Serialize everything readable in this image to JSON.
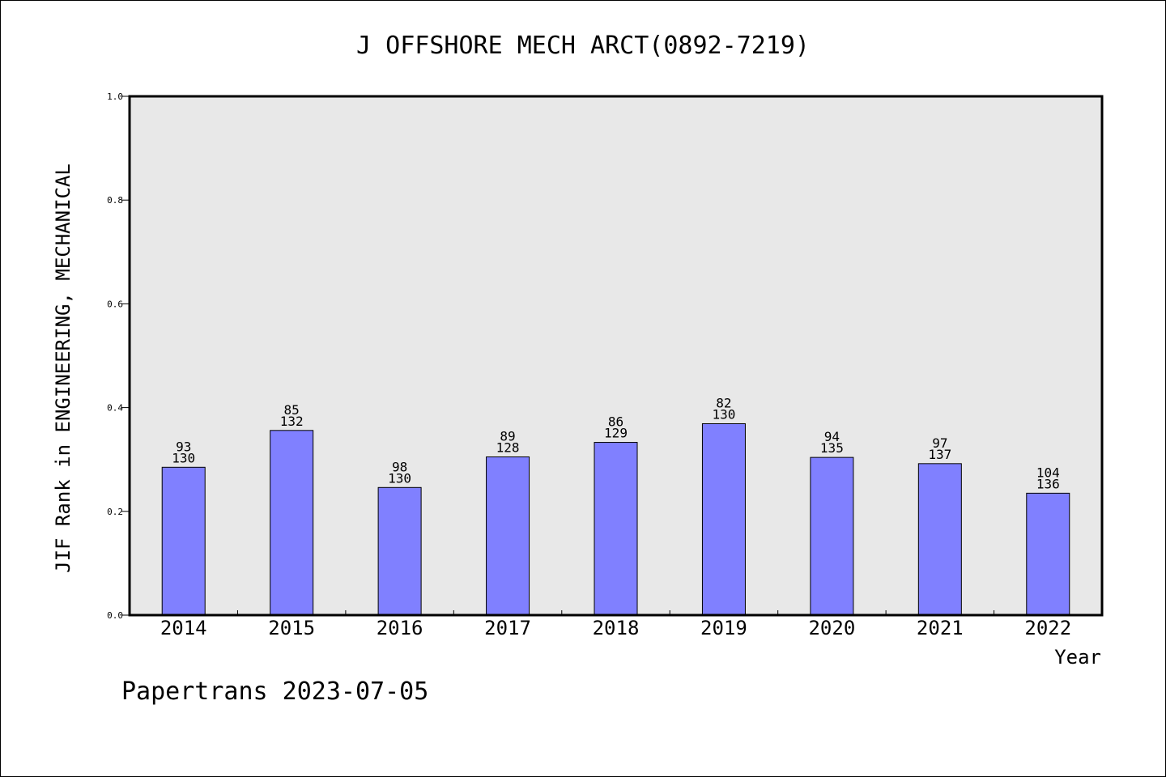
{
  "chart_data": {
    "type": "bar",
    "title": "J OFFSHORE MECH ARCT(0892-7219)",
    "xlabel": "Year",
    "ylabel": "JIF Rank in ENGINEERING, MECHANICAL",
    "ylim": [
      0.0,
      1.0
    ],
    "yticks": [
      "0.0",
      "0.2",
      "0.4",
      "0.6",
      "0.8",
      "1.0"
    ],
    "categories": [
      "2014",
      "2015",
      "2016",
      "2017",
      "2018",
      "2019",
      "2020",
      "2021",
      "2022"
    ],
    "values": [
      0.285,
      0.356,
      0.246,
      0.305,
      0.333,
      0.369,
      0.304,
      0.292,
      0.235
    ],
    "rank": [
      "93",
      "85",
      "98",
      "89",
      "86",
      "82",
      "94",
      "97",
      "104"
    ],
    "total": [
      "130",
      "132",
      "130",
      "128",
      "129",
      "130",
      "135",
      "137",
      "136"
    ],
    "bar_color": "#8080ff",
    "plot_background": "#e8e8e8",
    "grid": false,
    "legend": "none"
  },
  "footer": "Papertrans 2023-07-05"
}
